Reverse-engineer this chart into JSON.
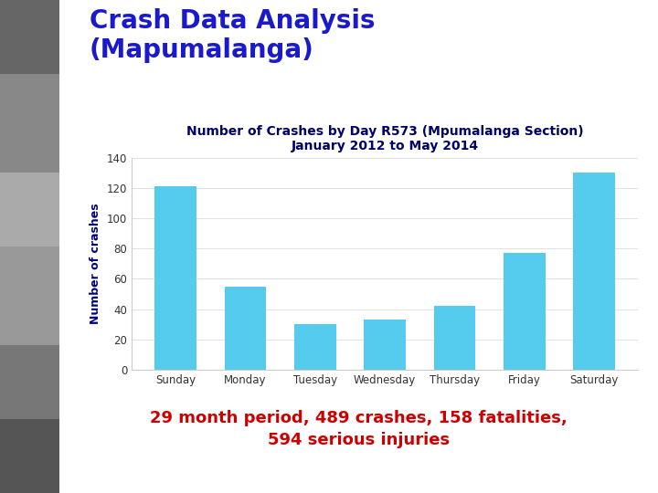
{
  "title_line1": "Crash Data Analysis",
  "title_line2": "(Mapumalanga)",
  "chart_title_line1": "Number of Crashes by Day R573 (Mpumalanga Section)",
  "chart_title_line2": "January 2012 to May 2014",
  "ylabel": "Number of crashes",
  "categories": [
    "Sunday",
    "Monday",
    "Tuesday",
    "Wednesday",
    "Thursday",
    "Friday",
    "Saturday"
  ],
  "values": [
    121,
    55,
    30,
    33,
    42,
    77,
    130
  ],
  "bar_color": "#55CCEE",
  "ylim": [
    0,
    140
  ],
  "yticks": [
    0,
    20,
    40,
    60,
    80,
    100,
    120,
    140
  ],
  "title_color": "#1a1acc",
  "chart_title_color": "#000066",
  "footer_line1": "29 month period, 489 crashes, 158 fatalities,",
  "footer_line2": "594 serious injuries",
  "footer_color": "#cc0000",
  "background_color": "#ffffff",
  "title_fontsize": 20,
  "chart_title_fontsize": 10,
  "ylabel_fontsize": 9,
  "footer_fontsize": 13
}
